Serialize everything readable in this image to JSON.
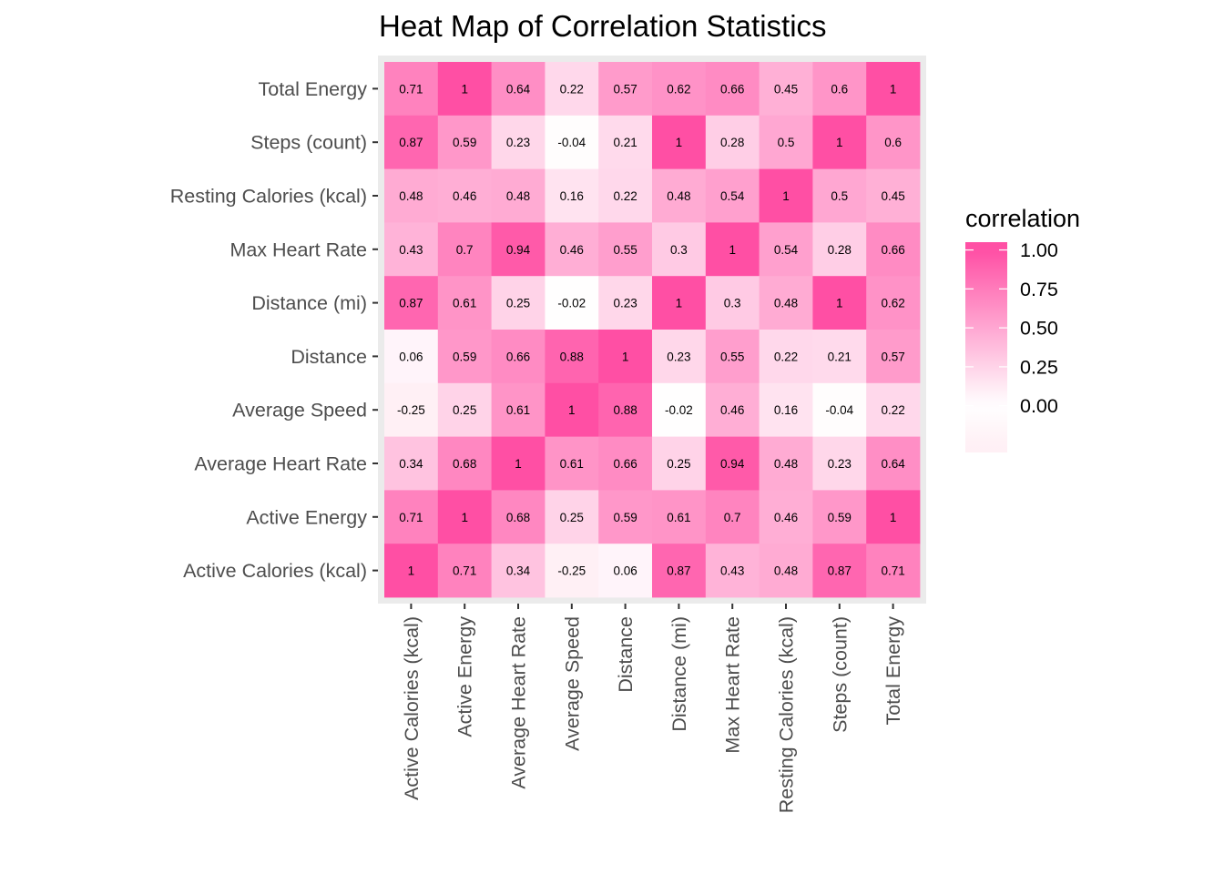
{
  "chart_data": {
    "type": "heatmap",
    "title": "Heat Map of Correlation Statistics",
    "xlabel": "",
    "ylabel": "",
    "x_categories": [
      "Active Calories (kcal)",
      "Active Energy",
      "Average Heart Rate",
      "Average Speed",
      "Distance",
      "Distance (mi)",
      "Max Heart Rate",
      "Resting Calories (kcal)",
      "Steps (count)",
      "Total Energy"
    ],
    "y_categories_top_to_bottom": [
      "Total Energy",
      "Steps (count)",
      "Resting Calories (kcal)",
      "Max Heart Rate",
      "Distance (mi)",
      "Distance",
      "Average Speed",
      "Average Heart Rate",
      "Active Energy",
      "Active Calories (kcal)"
    ],
    "cell_labels": [
      [
        "0.71",
        "1",
        "0.64",
        "0.22",
        "0.57",
        "0.62",
        "0.66",
        "0.45",
        "0.6",
        "1"
      ],
      [
        "0.87",
        "0.59",
        "0.23",
        "-0.04",
        "0.21",
        "1",
        "0.28",
        "0.5",
        "1",
        "0.6"
      ],
      [
        "0.48",
        "0.46",
        "0.48",
        "0.16",
        "0.22",
        "0.48",
        "0.54",
        "1",
        "0.5",
        "0.45"
      ],
      [
        "0.43",
        "0.7",
        "0.94",
        "0.46",
        "0.55",
        "0.3",
        "1",
        "0.54",
        "0.28",
        "0.66"
      ],
      [
        "0.87",
        "0.61",
        "0.25",
        "-0.02",
        "0.23",
        "1",
        "0.3",
        "0.48",
        "1",
        "0.62"
      ],
      [
        "0.06",
        "0.59",
        "0.66",
        "0.88",
        "1",
        "0.23",
        "0.55",
        "0.22",
        "0.21",
        "0.57"
      ],
      [
        "-0.25",
        "0.25",
        "0.61",
        "1",
        "0.88",
        "-0.02",
        "0.46",
        "0.16",
        "-0.04",
        "0.22"
      ],
      [
        "0.34",
        "0.68",
        "1",
        "0.61",
        "0.66",
        "0.25",
        "0.94",
        "0.48",
        "0.23",
        "0.64"
      ],
      [
        "0.71",
        "1",
        "0.68",
        "0.25",
        "0.59",
        "0.61",
        "0.7",
        "0.46",
        "0.59",
        "1"
      ],
      [
        "1",
        "0.71",
        "0.34",
        "-0.25",
        "0.06",
        "0.87",
        "0.43",
        "0.48",
        "0.87",
        "0.71"
      ]
    ],
    "value_range": [
      -0.25,
      1
    ],
    "color_low": "#fff0f5",
    "color_mid": "#ffffff",
    "color_high": "#ff4fa4",
    "panel_background": "#ebebeb",
    "grid": true,
    "legend": {
      "title": "correlation",
      "position": "right",
      "breaks": [
        1.0,
        0.75,
        0.5,
        0.25,
        0.0
      ],
      "labels": [
        "1.00",
        "0.75",
        "0.50",
        "0.25",
        "0.00"
      ]
    }
  }
}
